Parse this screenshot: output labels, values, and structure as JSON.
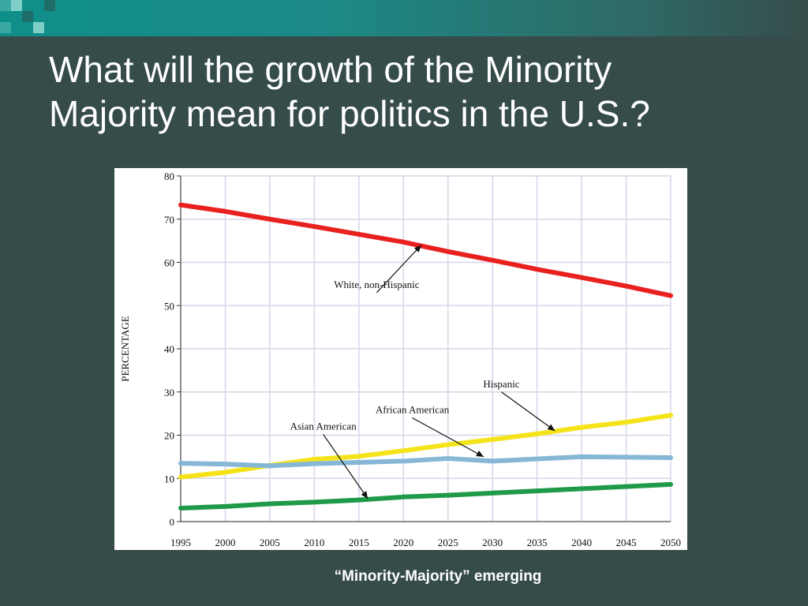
{
  "slide": {
    "title_line1": "What will the growth of the Minority",
    "title_line2": "Majority mean for politics in the U.S.?",
    "caption": "“Minority-Majority” emerging"
  },
  "colors": {
    "background": "#354c4a",
    "accent": "#1c8a86"
  },
  "chart_data": {
    "type": "line",
    "title": "",
    "xlabel": "",
    "ylabel": "PERCENTAGE",
    "x": [
      1995,
      2000,
      2005,
      2010,
      2015,
      2020,
      2025,
      2030,
      2035,
      2040,
      2045,
      2050
    ],
    "xlim": [
      1995,
      2050
    ],
    "ylim": [
      0,
      80
    ],
    "yticks": [
      0,
      10,
      20,
      30,
      40,
      50,
      60,
      70,
      80
    ],
    "grid": true,
    "legend": "none (series labeled by annotations)",
    "series": [
      {
        "name": "White, non-Hispanic",
        "color": "#e8211f",
        "values": [
          73.3,
          71.8,
          70.0,
          68.3,
          66.5,
          64.7,
          62.5,
          60.5,
          58.4,
          56.5,
          54.5,
          52.3
        ]
      },
      {
        "name": "Hispanic",
        "color": "#f5e31a",
        "values": [
          10.3,
          11.4,
          13.0,
          14.4,
          15.1,
          16.4,
          17.8,
          19.0,
          20.3,
          21.8,
          23.0,
          24.6
        ]
      },
      {
        "name": "African American",
        "color": "#86b7d6",
        "values": [
          13.5,
          13.3,
          12.9,
          13.4,
          13.7,
          14.0,
          14.6,
          14.0,
          14.5,
          15.0,
          14.9,
          14.8
        ]
      },
      {
        "name": "Asian American",
        "color": "#1f9a48",
        "values": [
          3.1,
          3.5,
          4.1,
          4.5,
          5.0,
          5.7,
          6.1,
          6.6,
          7.1,
          7.6,
          8.1,
          8.6
        ]
      }
    ],
    "annotations": [
      {
        "text": "White, non-Hispanic",
        "target": [
          2022,
          64.0
        ],
        "anchor": [
          2017,
          53.0
        ]
      },
      {
        "text": "Hispanic",
        "target": [
          2037,
          21.0
        ],
        "anchor": [
          2031,
          30.0
        ]
      },
      {
        "text": "African American",
        "target": [
          2029,
          15.0
        ],
        "anchor": [
          2021,
          24.0
        ]
      },
      {
        "text": "Asian American",
        "target": [
          2016,
          5.3
        ],
        "anchor": [
          2011,
          20.2
        ]
      }
    ]
  }
}
